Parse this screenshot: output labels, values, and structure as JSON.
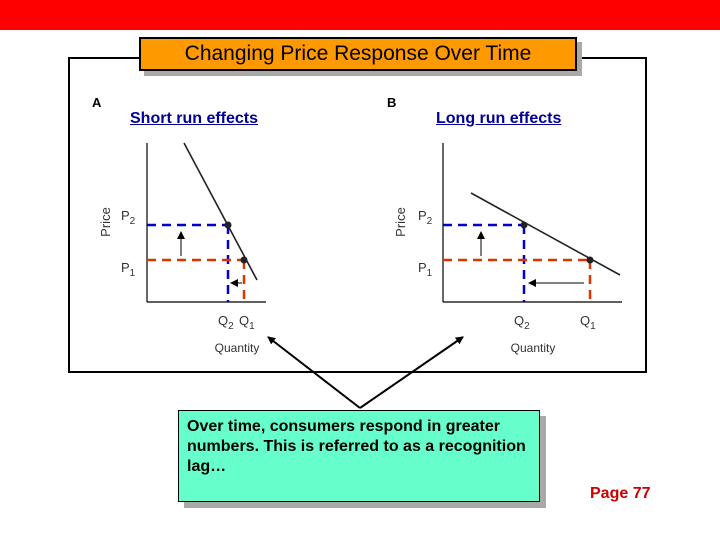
{
  "slide": {
    "title": "Changing Price Response Over Time",
    "page_number": "Page 77",
    "callout": "Over time, consumers respond in greater numbers. This is referred to as a recognition lag…"
  },
  "panels": [
    {
      "letter": "A",
      "title": "Short run effects",
      "y_axis_label": "Price",
      "x_axis_label": "Quantity",
      "price_labels": [
        "P2",
        "P1"
      ],
      "quantity_labels": [
        "Q2",
        "Q1"
      ],
      "demand_slope": "steep"
    },
    {
      "letter": "B",
      "title": "Long run effects",
      "y_axis_label": "Price",
      "x_axis_label": "Quantity",
      "price_labels": [
        "P2",
        "P1"
      ],
      "quantity_labels": [
        "Q2",
        "Q1"
      ],
      "demand_slope": "flat"
    }
  ],
  "colors": {
    "top_bar": "#ff0000",
    "title_fill": "#ff9900",
    "panel_title_text": "#000099",
    "higher_price_line": "#0000cc",
    "lower_price_line": "#dd3300",
    "callout_fill": "#66ffcc",
    "page_number": "#cc0000"
  }
}
